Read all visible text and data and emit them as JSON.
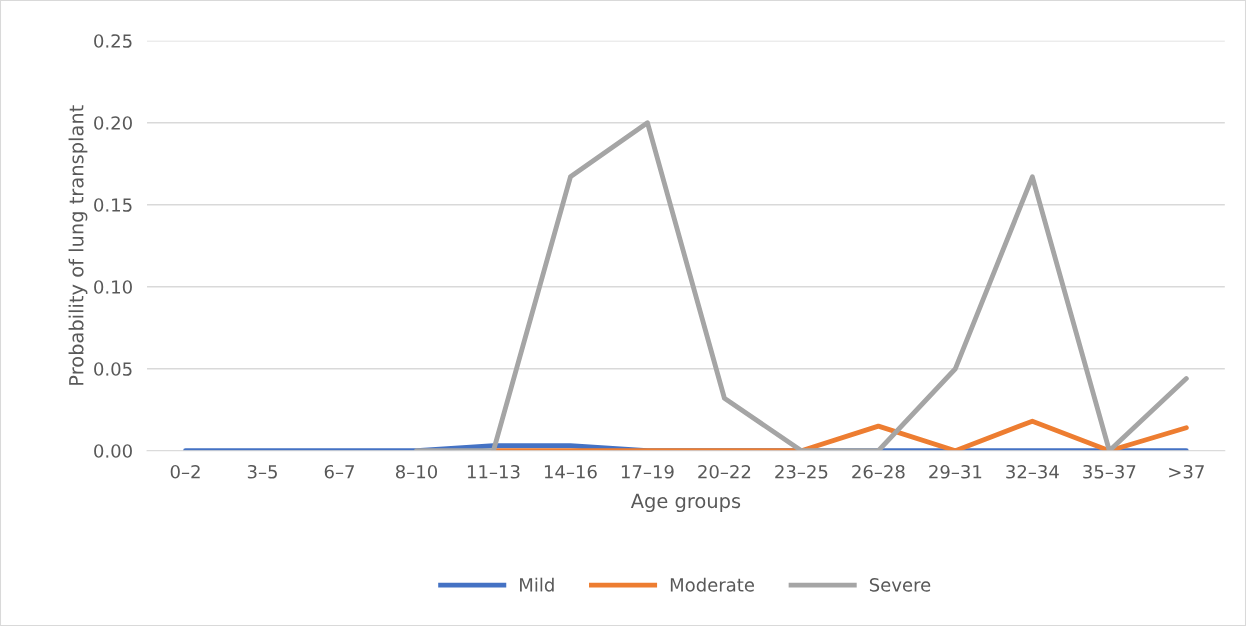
{
  "chart_data": {
    "type": "line",
    "xlabel": "Age groups",
    "ylabel": "Probability of lung transplant",
    "categories": [
      "0–2",
      "3–5",
      "6–7",
      "8–10",
      "11–13",
      "14–16",
      "17–19",
      "20–22",
      "23–25",
      "26–28",
      "29–31",
      "32–34",
      "35–37",
      ">37"
    ],
    "series": [
      {
        "name": "Mild",
        "color": "#4472c4",
        "values": [
          0,
          0,
          0,
          0,
          0.003,
          0.003,
          0,
          0,
          0,
          0,
          0,
          0,
          0,
          0
        ]
      },
      {
        "name": "Moderate",
        "color": "#ed7d31",
        "values": [
          null,
          null,
          null,
          null,
          0,
          0,
          0,
          0,
          0,
          0.015,
          0,
          0.018,
          0,
          0.014
        ]
      },
      {
        "name": "Severe",
        "color": "#a5a5a5",
        "values": [
          null,
          null,
          null,
          0,
          0,
          0.167,
          0.2,
          0.032,
          0,
          0,
          0.05,
          0.167,
          0,
          0.044
        ]
      }
    ],
    "ylim": [
      0,
      0.25
    ],
    "yticks": [
      {
        "value": 0,
        "label": "0.00"
      },
      {
        "value": 0.05,
        "label": "0.05"
      },
      {
        "value": 0.1,
        "label": "0.10"
      },
      {
        "value": 0.15,
        "label": "0.15"
      },
      {
        "value": 0.2,
        "label": "0.20"
      },
      {
        "value": 0.25,
        "label": "0.25"
      }
    ],
    "grid": "y",
    "legend": "bottom",
    "marker": "none",
    "line_style": "solid"
  }
}
